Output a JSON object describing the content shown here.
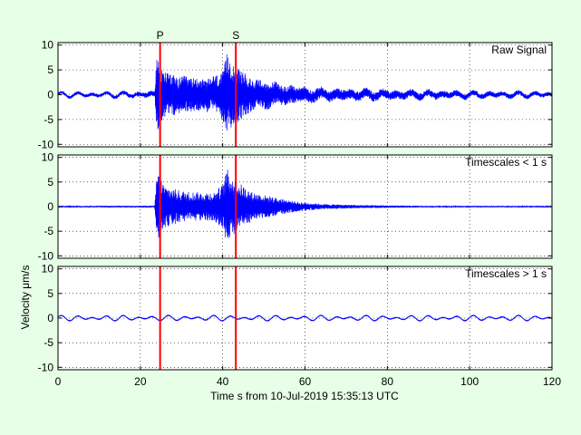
{
  "figure": {
    "background": "#e6ffe6",
    "xlabel": "Time s from 10-Jul-2019 15:35:13 UTC",
    "ylabel": "Velocity μm/s"
  },
  "chart_data": [
    {
      "type": "line",
      "title": "Raw Signal",
      "xlim": [
        0,
        120
      ],
      "ylim": [
        -10.5,
        10.5
      ],
      "xticks": [
        0,
        20,
        40,
        60,
        80,
        100,
        120
      ],
      "yticks": [
        -10,
        -5,
        0,
        5,
        10
      ],
      "ytick_labels": [
        "-10",
        "-5",
        "0",
        "5",
        "10"
      ],
      "grid": true,
      "line_color": "#0000ff",
      "markers": [
        {
          "label": "P",
          "x": 24.8,
          "color": "#ff0000"
        },
        {
          "label": "S",
          "x": 43.2,
          "color": "#ff0000"
        }
      ],
      "envelope": [
        [
          0,
          0.3
        ],
        [
          15,
          0.4
        ],
        [
          23.5,
          0.6
        ],
        [
          24,
          7.8
        ],
        [
          26,
          4.6
        ],
        [
          30,
          3.6
        ],
        [
          35,
          3.3
        ],
        [
          38,
          3.4
        ],
        [
          40,
          5.0
        ],
        [
          41,
          8.2
        ],
        [
          43,
          6.0
        ],
        [
          47,
          3.2
        ],
        [
          52,
          2.4
        ],
        [
          58,
          1.6
        ],
        [
          65,
          1.1
        ],
        [
          75,
          1.0
        ],
        [
          85,
          0.8
        ],
        [
          100,
          0.6
        ],
        [
          120,
          0.4
        ]
      ],
      "long_period_amplitude": 0.5
    },
    {
      "type": "line",
      "title": "Timescales < 1 s",
      "xlim": [
        0,
        120
      ],
      "ylim": [
        -10.5,
        10.5
      ],
      "xticks": [
        0,
        20,
        40,
        60,
        80,
        100,
        120
      ],
      "yticks": [
        -10,
        -5,
        0,
        5,
        10
      ],
      "ytick_labels": [
        "-10",
        "-5",
        "0",
        "5",
        "10"
      ],
      "grid": true,
      "line_color": "#0000ff",
      "markers": [
        {
          "label": "P",
          "x": 24.8,
          "color": "#ff0000"
        },
        {
          "label": "S",
          "x": 43.2,
          "color": "#ff0000"
        }
      ],
      "envelope": [
        [
          0,
          0.15
        ],
        [
          23.5,
          0.2
        ],
        [
          24,
          7.5
        ],
        [
          26,
          4.2
        ],
        [
          30,
          3.2
        ],
        [
          35,
          2.9
        ],
        [
          38,
          3.0
        ],
        [
          40,
          4.6
        ],
        [
          41,
          7.8
        ],
        [
          43,
          5.5
        ],
        [
          47,
          3.0
        ],
        [
          52,
          2.0
        ],
        [
          58,
          1.0
        ],
        [
          65,
          0.5
        ],
        [
          75,
          0.3
        ],
        [
          90,
          0.15
        ],
        [
          120,
          0.15
        ]
      ],
      "long_period_amplitude": 0
    },
    {
      "type": "line",
      "title": "Timescales > 1 s",
      "xlim": [
        0,
        120
      ],
      "ylim": [
        -10.5,
        10.5
      ],
      "xticks": [
        0,
        20,
        40,
        60,
        80,
        100,
        120
      ],
      "xtick_labels": [
        "0",
        "20",
        "40",
        "60",
        "80",
        "100",
        "120"
      ],
      "yticks": [
        -10,
        -5,
        0,
        5,
        10
      ],
      "ytick_labels": [
        "-10",
        "-5",
        "0",
        "5",
        "10"
      ],
      "grid": true,
      "line_color": "#0000ff",
      "markers": [
        {
          "label": "P",
          "x": 24.8,
          "color": "#ff0000"
        },
        {
          "label": "S",
          "x": 43.2,
          "color": "#ff0000"
        }
      ],
      "envelope": [
        [
          0,
          0.05
        ],
        [
          120,
          0.05
        ]
      ],
      "long_period_amplitude": 0.55
    }
  ]
}
